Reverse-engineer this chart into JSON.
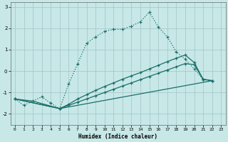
{
  "xlabel": "Humidex (Indice chaleur)",
  "bg_color": "#c8e8e8",
  "grid_color": "#a0c4c4",
  "line_color": "#1a6e6a",
  "xlim": [
    -0.5,
    23.5
  ],
  "ylim": [
    -2.5,
    3.2
  ],
  "xticks": [
    0,
    1,
    2,
    3,
    4,
    5,
    6,
    7,
    8,
    9,
    10,
    11,
    12,
    13,
    14,
    15,
    16,
    17,
    18,
    19,
    20,
    21,
    22,
    23
  ],
  "yticks": [
    -2,
    -1,
    0,
    1,
    2,
    3
  ],
  "line1_x": [
    0,
    1,
    2,
    3,
    4,
    5,
    6,
    7,
    8,
    9,
    10,
    11,
    12,
    13,
    14,
    15,
    16,
    17,
    18,
    19,
    20,
    21,
    22
  ],
  "line1_y": [
    -1.3,
    -1.6,
    -1.4,
    -1.2,
    -1.5,
    -1.75,
    -0.6,
    0.35,
    1.3,
    1.6,
    1.85,
    1.95,
    1.95,
    2.1,
    2.3,
    2.75,
    2.05,
    1.6,
    0.9,
    0.55,
    0.1,
    -0.4,
    -0.45
  ],
  "line2_x": [
    0,
    2,
    5,
    22
  ],
  "line2_y": [
    -1.3,
    -1.4,
    -1.75,
    -0.45
  ],
  "line3_x": [
    0,
    5,
    6,
    7,
    8,
    9,
    10,
    11,
    12,
    13,
    14,
    15,
    16,
    17,
    18,
    19,
    20,
    21,
    22
  ],
  "line3_y": [
    -1.3,
    -1.75,
    -1.55,
    -1.3,
    -1.1,
    -0.9,
    -0.72,
    -0.55,
    -0.38,
    -0.22,
    -0.07,
    0.1,
    0.27,
    0.44,
    0.6,
    0.75,
    0.4,
    -0.38,
    -0.45
  ],
  "line4_x": [
    0,
    5,
    6,
    7,
    8,
    9,
    10,
    11,
    12,
    13,
    14,
    15,
    16,
    17,
    18,
    19,
    20,
    21,
    22
  ],
  "line4_y": [
    -1.3,
    -1.75,
    -1.6,
    -1.45,
    -1.3,
    -1.15,
    -1.0,
    -0.85,
    -0.7,
    -0.55,
    -0.4,
    -0.25,
    -0.1,
    0.05,
    0.2,
    0.35,
    0.3,
    -0.38,
    -0.45
  ]
}
